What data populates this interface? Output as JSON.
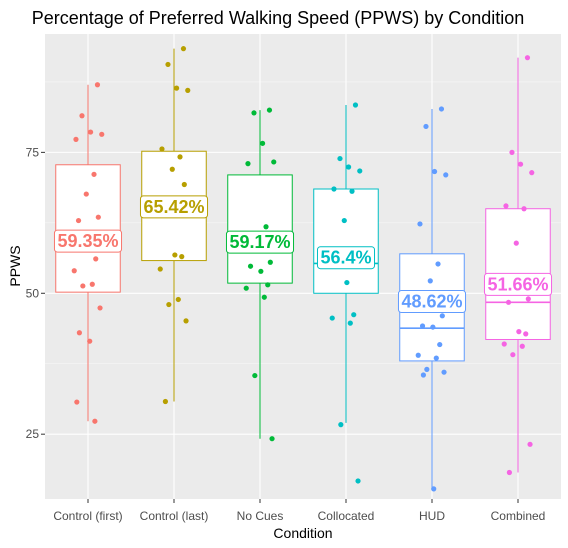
{
  "chart_data": {
    "type": "boxplot",
    "title": "Percentage of Preferred Walking Speed (PPWS) by Condition",
    "xlabel": "Condition",
    "ylabel": "PPWS",
    "ylim": [
      13.5,
      96
    ],
    "yticks": [
      25,
      50,
      75
    ],
    "grid": true,
    "legend": "none",
    "categories": [
      "Control (first)",
      "Control (last)",
      "No Cues",
      "Collocated",
      "HUD",
      "Combined"
    ],
    "colors": [
      "#F8766D",
      "#B79F00",
      "#00BA38",
      "#00BFC4",
      "#619CFF",
      "#F564E3"
    ],
    "series": [
      {
        "category": "Control (first)",
        "whisker_low": 27.3,
        "q1": 50.2,
        "median": 59.5,
        "q3": 72.8,
        "whisker_high": 87.0,
        "mean_label": "59.35%",
        "mean": 59.35,
        "points": [
          87.0,
          81.5,
          78.6,
          78.2,
          77.3,
          71.1,
          67.6,
          63.5,
          62.9,
          59.3,
          56.1,
          54.0,
          51.6,
          51.3,
          47.4,
          43.0,
          41.5,
          30.7,
          27.3
        ]
      },
      {
        "category": "Control (last)",
        "whisker_low": 30.8,
        "q1": 55.8,
        "median": 65.5,
        "q3": 75.2,
        "whisker_high": 93.4,
        "mean_label": "65.42%",
        "mean": 65.42,
        "points": [
          93.4,
          90.6,
          86.4,
          86.0,
          75.6,
          74.2,
          72.0,
          69.3,
          65.5,
          56.8,
          56.5,
          54.3,
          48.9,
          48.0,
          45.1,
          30.8
        ]
      },
      {
        "category": "No Cues",
        "whisker_low": 24.2,
        "q1": 51.8,
        "median": 59.0,
        "q3": 71.0,
        "whisker_high": 82.5,
        "mean_label": "59.17%",
        "mean": 59.17,
        "points": [
          82.5,
          82.0,
          76.6,
          73.3,
          73.0,
          61.8,
          59.0,
          55.5,
          54.8,
          53.9,
          51.5,
          50.9,
          49.3,
          35.4,
          24.2
        ]
      },
      {
        "category": "Collocated",
        "whisker_low": 27.0,
        "q1": 50.0,
        "median": 55.3,
        "q3": 68.5,
        "whisker_high": 83.4,
        "mean_label": "56.4%",
        "mean": 56.4,
        "points": [
          83.4,
          73.9,
          72.4,
          71.7,
          68.5,
          68.1,
          62.9,
          56.0,
          55.1,
          51.9,
          46.2,
          45.6,
          44.7,
          26.7,
          16.7
        ]
      },
      {
        "category": "HUD",
        "whisker_low": 15.3,
        "q1": 38.0,
        "median": 43.8,
        "q3": 57.0,
        "whisker_high": 82.7,
        "mean_label": "48.62%",
        "mean": 48.62,
        "points": [
          82.7,
          79.6,
          71.6,
          71.0,
          62.3,
          55.2,
          52.2,
          46.0,
          44.2,
          44.0,
          40.9,
          39.0,
          38.5,
          36.5,
          36.0,
          35.5,
          15.3
        ]
      },
      {
        "category": "Combined",
        "whisker_low": 18.2,
        "q1": 41.8,
        "median": 48.4,
        "q3": 65.0,
        "whisker_high": 91.8,
        "mean_label": "51.66%",
        "mean": 51.66,
        "points": [
          91.8,
          75.0,
          72.9,
          71.4,
          65.5,
          65.0,
          58.9,
          49.0,
          48.4,
          43.2,
          42.8,
          41.0,
          40.6,
          39.1,
          23.2,
          18.2
        ]
      }
    ]
  }
}
